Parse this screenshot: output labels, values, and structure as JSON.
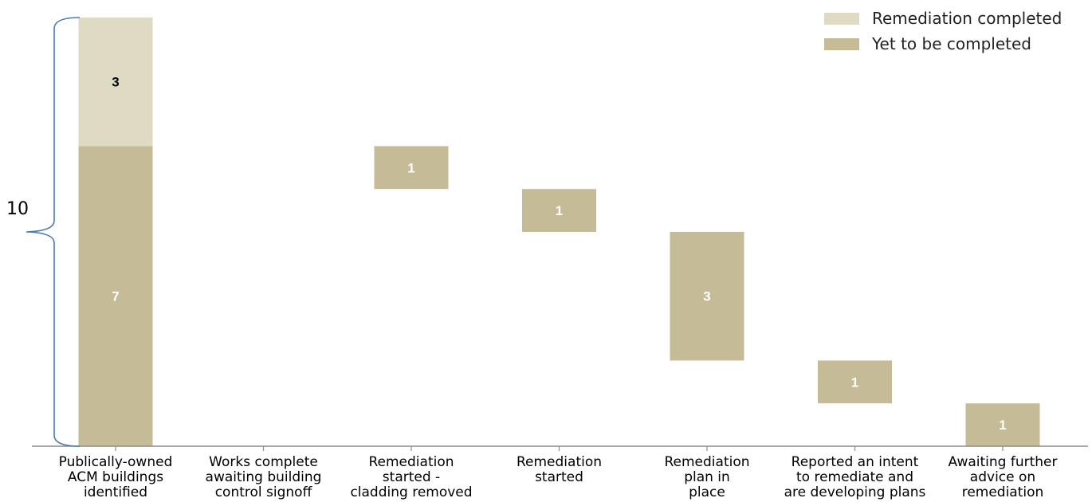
{
  "chart_data": {
    "type": "bar",
    "subtype": "waterfall",
    "categories": [
      [
        "Publically-owned",
        "ACM buildings",
        "identified"
      ],
      [
        "Works complete",
        "awaiting building",
        "control signoff"
      ],
      [
        "Remediation",
        "started -",
        "cladding removed"
      ],
      [
        "Remediation",
        "started"
      ],
      [
        "Remediation",
        "plan in",
        "place"
      ],
      [
        "Reported an intent",
        "to remediate and",
        "are developing plans"
      ],
      [
        "Awaiting further",
        "advice on",
        "remediation"
      ]
    ],
    "series": [
      {
        "name": "Remediation completed",
        "color": "#dedac3",
        "segments": [
          {
            "category": 0,
            "base": 7,
            "value": 3,
            "label": "3"
          }
        ]
      },
      {
        "name": "Yet to be completed",
        "color": "#c5bc97",
        "segments": [
          {
            "category": 0,
            "base": 0,
            "value": 7,
            "label": "7"
          },
          {
            "category": 2,
            "base": 6,
            "value": 1,
            "label": "1"
          },
          {
            "category": 3,
            "base": 5,
            "value": 1,
            "label": "1"
          },
          {
            "category": 4,
            "base": 2,
            "value": 3,
            "label": "3"
          },
          {
            "category": 5,
            "base": 1,
            "value": 1,
            "label": "1"
          },
          {
            "category": 6,
            "base": 0,
            "value": 1,
            "label": "1"
          }
        ]
      }
    ],
    "brace": {
      "label": "10",
      "from": 0,
      "to": 10,
      "color": "#4a7ab0"
    },
    "ylim": [
      0,
      10
    ],
    "grid": false,
    "legend_position": "top-right"
  }
}
